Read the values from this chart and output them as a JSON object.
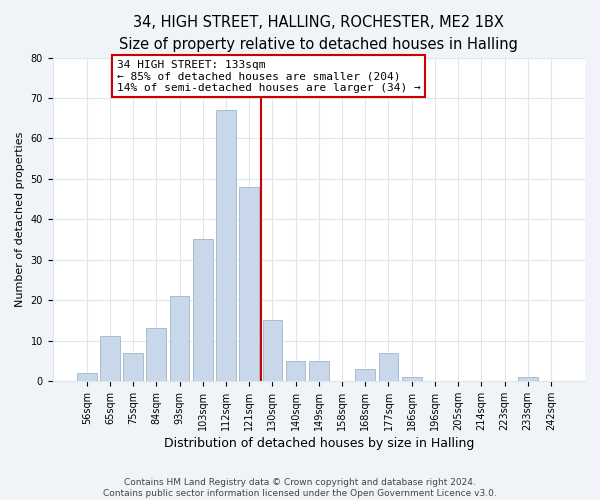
{
  "title": "34, HIGH STREET, HALLING, ROCHESTER, ME2 1BX",
  "subtitle": "Size of property relative to detached houses in Halling",
  "xlabel": "Distribution of detached houses by size in Halling",
  "ylabel": "Number of detached properties",
  "bar_labels": [
    "56sqm",
    "65sqm",
    "75sqm",
    "84sqm",
    "93sqm",
    "103sqm",
    "112sqm",
    "121sqm",
    "130sqm",
    "140sqm",
    "149sqm",
    "158sqm",
    "168sqm",
    "177sqm",
    "186sqm",
    "196sqm",
    "205sqm",
    "214sqm",
    "223sqm",
    "233sqm",
    "242sqm"
  ],
  "bar_values": [
    2,
    11,
    7,
    13,
    21,
    35,
    67,
    48,
    15,
    5,
    5,
    0,
    3,
    7,
    1,
    0,
    0,
    0,
    0,
    1,
    0
  ],
  "bar_color": "#c8d8ea",
  "bar_edge_color": "#aabdcc",
  "reference_line_color": "#cc0000",
  "annotation_text": "34 HIGH STREET: 133sqm\n← 85% of detached houses are smaller (204)\n14% of semi-detached houses are larger (34) →",
  "annotation_box_edge_color": "#cc0000",
  "annotation_box_face_color": "#ffffff",
  "ylim": [
    0,
    80
  ],
  "yticks": [
    0,
    10,
    20,
    30,
    40,
    50,
    60,
    70,
    80
  ],
  "fig_background_color": "#f0f4f8",
  "plot_background_color": "#ffffff",
  "grid_color": "#dde5ed",
  "footer_line1": "Contains HM Land Registry data © Crown copyright and database right 2024.",
  "footer_line2": "Contains public sector information licensed under the Open Government Licence v3.0.",
  "title_fontsize": 10.5,
  "subtitle_fontsize": 9.5,
  "xlabel_fontsize": 9,
  "ylabel_fontsize": 8,
  "tick_fontsize": 7,
  "annotation_fontsize": 8,
  "footer_fontsize": 6.5
}
